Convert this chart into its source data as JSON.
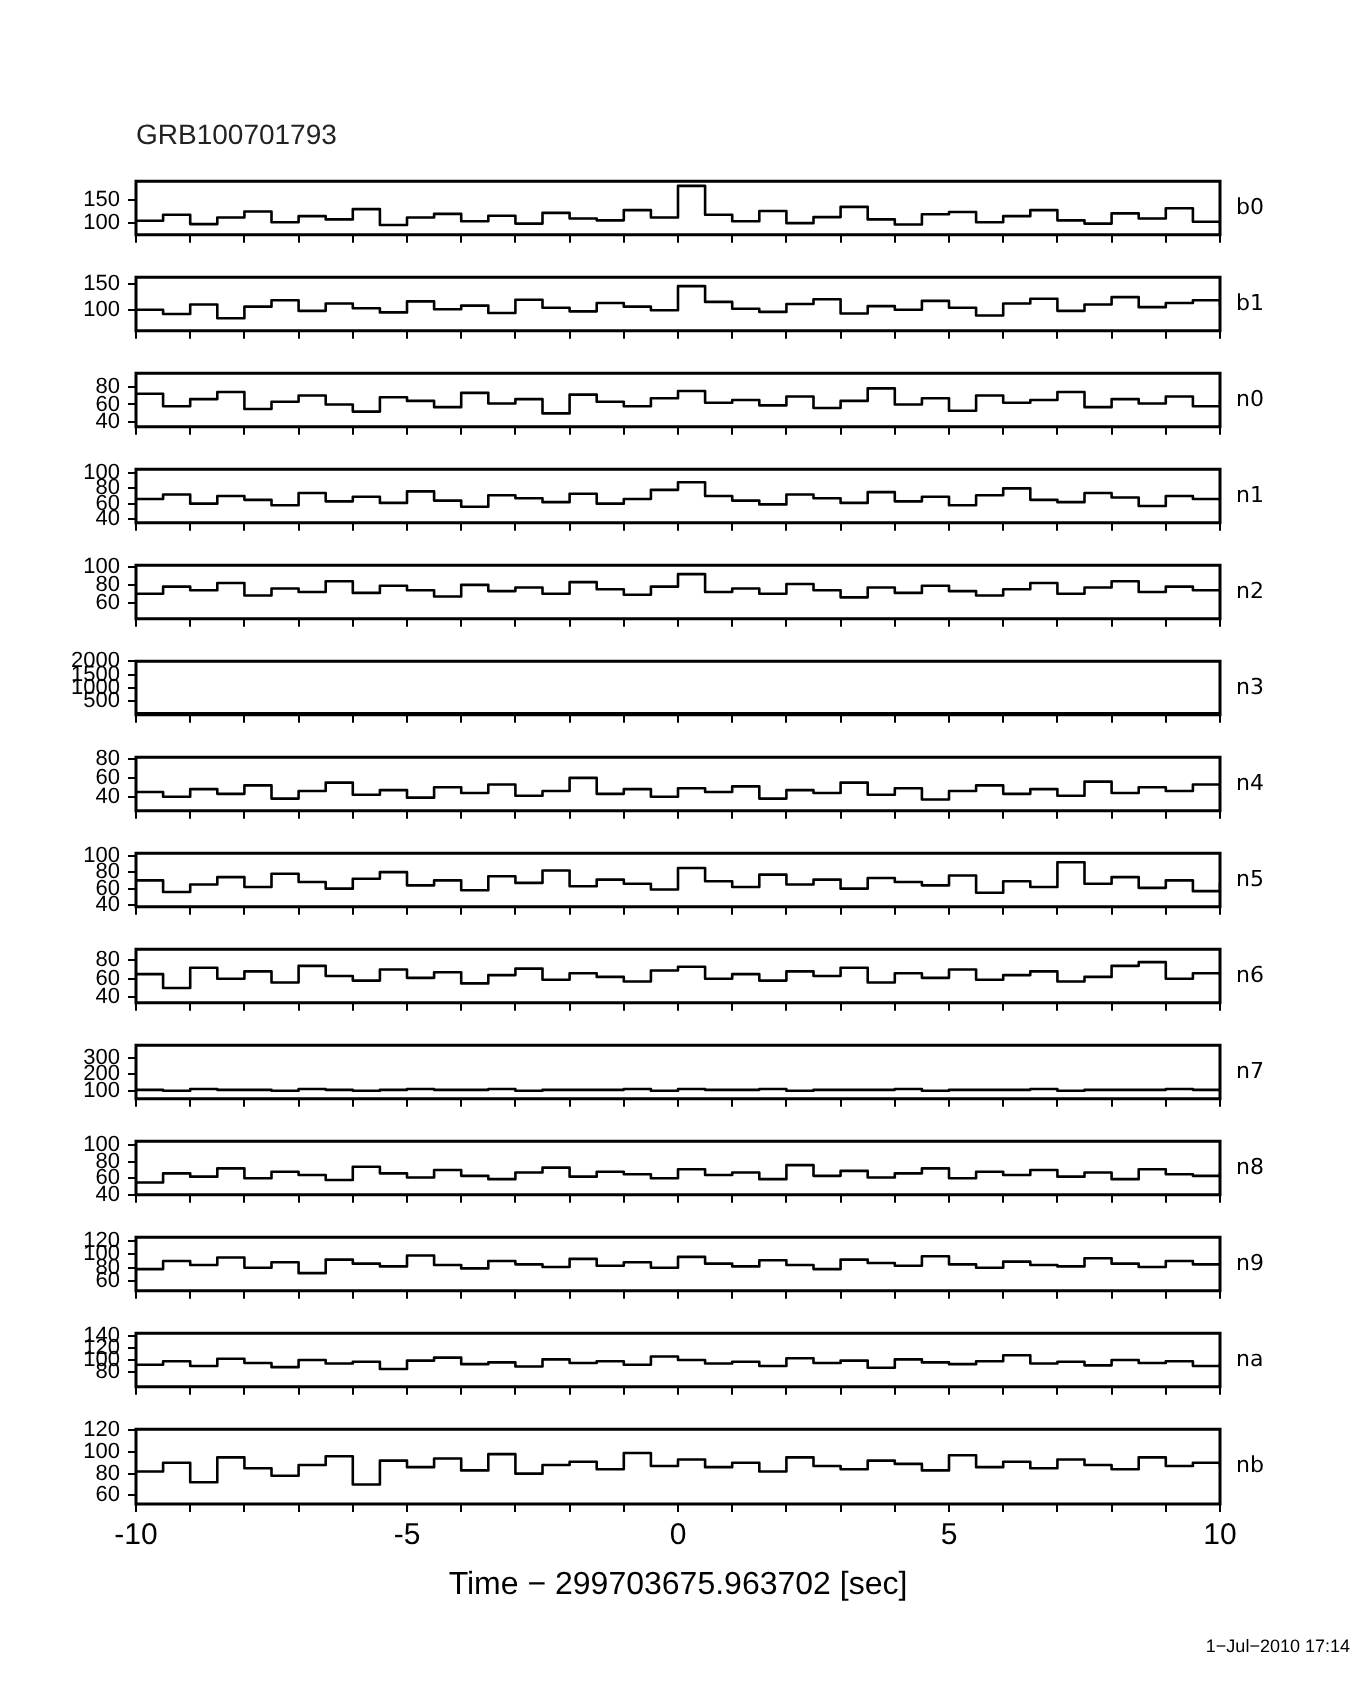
{
  "chart_data": [
    {
      "type": "step",
      "title": "GRB100701793",
      "x": [
        -10,
        -9.5,
        -9,
        -8.5,
        -8,
        -7.5,
        -7,
        -6.5,
        -6,
        -5.5,
        -5,
        -4.5,
        -4,
        -3.5,
        -3,
        -2.5,
        -2,
        -1.5,
        -1,
        -0.5,
        0,
        0.5,
        1,
        1.5,
        2,
        2.5,
        3,
        3.5,
        4,
        4.5,
        5,
        5.5,
        6,
        6.5,
        7,
        7.5,
        8,
        8.5,
        9,
        9.5,
        10
      ],
      "xlim": [
        -10,
        10
      ],
      "xticks": [
        -10,
        {
          "value": -9,
          "label": null
        },
        {
          "value": -8,
          "label": null
        },
        {
          "value": -7,
          "label": null
        },
        {
          "value": -6,
          "label": null
        },
        -5,
        {
          "value": -4,
          "label": null
        },
        {
          "value": -3,
          "label": null
        },
        {
          "value": -2,
          "label": null
        },
        {
          "value": -1,
          "label": null
        },
        0,
        {
          "value": 1,
          "label": null
        },
        {
          "value": 2,
          "label": null
        },
        {
          "value": 3,
          "label": null
        },
        {
          "value": 4,
          "label": null
        },
        5,
        {
          "value": 6,
          "label": null
        },
        {
          "value": 7,
          "label": null
        },
        {
          "value": 8,
          "label": null
        },
        {
          "value": 9,
          "label": null
        },
        10
      ],
      "ylim": [
        75,
        190
      ],
      "yticks": [
        100,
        150
      ],
      "tick_labels": "y",
      "series": [
        {
          "name": "b0",
          "color": "#000000",
          "values": [
            105,
            118,
            98,
            112,
            125,
            102,
            115,
            108,
            130,
            96,
            112,
            120,
            104,
            116,
            99,
            122,
            110,
            106,
            128,
            112,
            180,
            118,
            104,
            126,
            100,
            113,
            135,
            108,
            97,
            119,
            124,
            102,
            115,
            128,
            106,
            99,
            121,
            110,
            132,
            103,
            96
          ]
        }
      ]
    },
    {
      "type": "step",
      "x": [
        -10,
        -9.5,
        -9,
        -8.5,
        -8,
        -7.5,
        -7,
        -6.5,
        -6,
        -5.5,
        -5,
        -4.5,
        -4,
        -3.5,
        -3,
        -2.5,
        -2,
        -1.5,
        -1,
        -0.5,
        0,
        0.5,
        1,
        1.5,
        2,
        2.5,
        3,
        3.5,
        4,
        4.5,
        5,
        5.5,
        6,
        6.5,
        7,
        7.5,
        8,
        8.5,
        9,
        9.5,
        10
      ],
      "xlim": [
        -10,
        10
      ],
      "xticks": [
        -10,
        {
          "value": -9,
          "label": null
        },
        {
          "value": -8,
          "label": null
        },
        {
          "value": -7,
          "label": null
        },
        {
          "value": -6,
          "label": null
        },
        -5,
        {
          "value": -4,
          "label": null
        },
        {
          "value": -3,
          "label": null
        },
        {
          "value": -2,
          "label": null
        },
        {
          "value": -1,
          "label": null
        },
        0,
        {
          "value": 1,
          "label": null
        },
        {
          "value": 2,
          "label": null
        },
        {
          "value": 3,
          "label": null
        },
        {
          "value": 4,
          "label": null
        },
        5,
        {
          "value": 6,
          "label": null
        },
        {
          "value": 7,
          "label": null
        },
        {
          "value": 8,
          "label": null
        },
        {
          "value": 9,
          "label": null
        },
        10
      ],
      "ylim": [
        60,
        162
      ],
      "yticks": [
        100,
        150
      ],
      "tick_labels": "y",
      "series": [
        {
          "name": "b1",
          "color": "#000000",
          "values": [
            100,
            92,
            110,
            84,
            106,
            118,
            98,
            112,
            103,
            95,
            116,
            101,
            108,
            94,
            119,
            104,
            97,
            113,
            106,
            99,
            145,
            115,
            102,
            96,
            111,
            120,
            93,
            107,
            100,
            117,
            104,
            89,
            112,
            121,
            98,
            110,
            124,
            105,
            113,
            118,
            108
          ]
        }
      ]
    },
    {
      "type": "step",
      "x": [
        -10,
        -9.5,
        -9,
        -8.5,
        -8,
        -7.5,
        -7,
        -6.5,
        -6,
        -5.5,
        -5,
        -4.5,
        -4,
        -3.5,
        -3,
        -2.5,
        -2,
        -1.5,
        -1,
        -0.5,
        0,
        0.5,
        1,
        1.5,
        2,
        2.5,
        3,
        3.5,
        4,
        4.5,
        5,
        5.5,
        6,
        6.5,
        7,
        7.5,
        8,
        8.5,
        9,
        9.5,
        10
      ],
      "xlim": [
        -10,
        10
      ],
      "xticks": [
        -10,
        {
          "value": -9,
          "label": null
        },
        {
          "value": -8,
          "label": null
        },
        {
          "value": -7,
          "label": null
        },
        {
          "value": -6,
          "label": null
        },
        -5,
        {
          "value": -4,
          "label": null
        },
        {
          "value": -3,
          "label": null
        },
        {
          "value": -2,
          "label": null
        },
        {
          "value": -1,
          "label": null
        },
        0,
        {
          "value": 1,
          "label": null
        },
        {
          "value": 2,
          "label": null
        },
        {
          "value": 3,
          "label": null
        },
        {
          "value": 4,
          "label": null
        },
        5,
        {
          "value": 6,
          "label": null
        },
        {
          "value": 7,
          "label": null
        },
        {
          "value": 8,
          "label": null
        },
        {
          "value": 9,
          "label": null
        },
        10
      ],
      "ylim": [
        35,
        95
      ],
      "yticks": [
        40,
        60,
        80
      ],
      "tick_labels": "y",
      "series": [
        {
          "name": "n0",
          "color": "#000000",
          "values": [
            72,
            58,
            66,
            74,
            55,
            63,
            70,
            60,
            52,
            68,
            64,
            57,
            73,
            61,
            66,
            50,
            71,
            63,
            58,
            67,
            75,
            62,
            65,
            59,
            69,
            56,
            64,
            78,
            60,
            67,
            53,
            70,
            62,
            65,
            74,
            57,
            66,
            61,
            69,
            58,
            65
          ]
        }
      ]
    },
    {
      "type": "step",
      "x": [
        -10,
        -9.5,
        -9,
        -8.5,
        -8,
        -7.5,
        -7,
        -6.5,
        -6,
        -5.5,
        -5,
        -4.5,
        -4,
        -3.5,
        -3,
        -2.5,
        -2,
        -1.5,
        -1,
        -0.5,
        0,
        0.5,
        1,
        1.5,
        2,
        2.5,
        3,
        3.5,
        4,
        4.5,
        5,
        5.5,
        6,
        6.5,
        7,
        7.5,
        8,
        8.5,
        9,
        9.5,
        10
      ],
      "xlim": [
        -10,
        10
      ],
      "xticks": [
        -10,
        {
          "value": -9,
          "label": null
        },
        {
          "value": -8,
          "label": null
        },
        {
          "value": -7,
          "label": null
        },
        {
          "value": -6,
          "label": null
        },
        -5,
        {
          "value": -4,
          "label": null
        },
        {
          "value": -3,
          "label": null
        },
        {
          "value": -2,
          "label": null
        },
        {
          "value": -1,
          "label": null
        },
        0,
        {
          "value": 1,
          "label": null
        },
        {
          "value": 2,
          "label": null
        },
        {
          "value": 3,
          "label": null
        },
        {
          "value": 4,
          "label": null
        },
        5,
        {
          "value": 6,
          "label": null
        },
        {
          "value": 7,
          "label": null
        },
        {
          "value": 8,
          "label": null
        },
        {
          "value": 9,
          "label": null
        },
        10
      ],
      "ylim": [
        35,
        105
      ],
      "yticks": [
        40,
        60,
        80,
        100
      ],
      "tick_labels": "y",
      "series": [
        {
          "name": "n1",
          "color": "#000000",
          "values": [
            66,
            72,
            60,
            70,
            65,
            58,
            74,
            63,
            69,
            61,
            76,
            64,
            56,
            71,
            67,
            62,
            73,
            60,
            66,
            78,
            88,
            70,
            64,
            59,
            72,
            67,
            61,
            75,
            63,
            69,
            58,
            71,
            80,
            65,
            62,
            74,
            68,
            57,
            70,
            66,
            63
          ]
        }
      ]
    },
    {
      "type": "step",
      "x": [
        -10,
        -9.5,
        -9,
        -8.5,
        -8,
        -7.5,
        -7,
        -6.5,
        -6,
        -5.5,
        -5,
        -4.5,
        -4,
        -3.5,
        -3,
        -2.5,
        -2,
        -1.5,
        -1,
        -0.5,
        0,
        0.5,
        1,
        1.5,
        2,
        2.5,
        3,
        3.5,
        4,
        4.5,
        5,
        5.5,
        6,
        6.5,
        7,
        7.5,
        8,
        8.5,
        9,
        9.5,
        10
      ],
      "xlim": [
        -10,
        10
      ],
      "xticks": [
        -10,
        {
          "value": -9,
          "label": null
        },
        {
          "value": -8,
          "label": null
        },
        {
          "value": -7,
          "label": null
        },
        {
          "value": -6,
          "label": null
        },
        -5,
        {
          "value": -4,
          "label": null
        },
        {
          "value": -3,
          "label": null
        },
        {
          "value": -2,
          "label": null
        },
        {
          "value": -1,
          "label": null
        },
        0,
        {
          "value": 1,
          "label": null
        },
        {
          "value": 2,
          "label": null
        },
        {
          "value": 3,
          "label": null
        },
        {
          "value": 4,
          "label": null
        },
        5,
        {
          "value": 6,
          "label": null
        },
        {
          "value": 7,
          "label": null
        },
        {
          "value": 8,
          "label": null
        },
        {
          "value": 9,
          "label": null
        },
        10
      ],
      "ylim": [
        42,
        102
      ],
      "yticks": [
        60,
        80,
        100
      ],
      "tick_labels": "y",
      "series": [
        {
          "name": "n2",
          "color": "#000000",
          "values": [
            70,
            78,
            74,
            82,
            68,
            76,
            72,
            84,
            71,
            79,
            74,
            67,
            80,
            73,
            77,
            70,
            83,
            75,
            69,
            78,
            92,
            72,
            76,
            70,
            81,
            74,
            66,
            77,
            71,
            79,
            73,
            68,
            75,
            82,
            70,
            77,
            84,
            72,
            78,
            74,
            76
          ]
        }
      ]
    },
    {
      "type": "step",
      "x": [
        -10,
        -9.5,
        -9,
        -8.5,
        -8,
        -7.5,
        -7,
        -6.5,
        -6,
        -5.5,
        -5,
        -4.5,
        -4,
        -3.5,
        -3,
        -2.5,
        -2,
        -1.5,
        -1,
        -0.5,
        0,
        0.5,
        1,
        1.5,
        2,
        2.5,
        3,
        3.5,
        4,
        4.5,
        5,
        5.5,
        6,
        6.5,
        7,
        7.5,
        8,
        8.5,
        9,
        9.5,
        10
      ],
      "xlim": [
        -10,
        10
      ],
      "xticks": [
        -10,
        {
          "value": -9,
          "label": null
        },
        {
          "value": -8,
          "label": null
        },
        {
          "value": -7,
          "label": null
        },
        {
          "value": -6,
          "label": null
        },
        -5,
        {
          "value": -4,
          "label": null
        },
        {
          "value": -3,
          "label": null
        },
        {
          "value": -2,
          "label": null
        },
        {
          "value": -1,
          "label": null
        },
        0,
        {
          "value": 1,
          "label": null
        },
        {
          "value": 2,
          "label": null
        },
        {
          "value": 3,
          "label": null
        },
        {
          "value": 4,
          "label": null
        },
        5,
        {
          "value": 6,
          "label": null
        },
        {
          "value": 7,
          "label": null
        },
        {
          "value": 8,
          "label": null
        },
        {
          "value": 9,
          "label": null
        },
        10
      ],
      "ylim": [
        0,
        2000
      ],
      "yticks": [
        500,
        1000,
        1500,
        2000
      ],
      "tick_labels": "y",
      "series": [
        {
          "name": "n3",
          "color": "#000000",
          "values": [
            60,
            60,
            60,
            60,
            60,
            60,
            60,
            60,
            60,
            60,
            60,
            60,
            60,
            60,
            60,
            60,
            60,
            60,
            60,
            60,
            60,
            60,
            60,
            60,
            60,
            60,
            60,
            60,
            60,
            60,
            60,
            60,
            60,
            60,
            60,
            60,
            60,
            60,
            60,
            60,
            60
          ]
        }
      ]
    },
    {
      "type": "step",
      "x": [
        -10,
        -9.5,
        -9,
        -8.5,
        -8,
        -7.5,
        -7,
        -6.5,
        -6,
        -5.5,
        -5,
        -4.5,
        -4,
        -3.5,
        -3,
        -2.5,
        -2,
        -1.5,
        -1,
        -0.5,
        0,
        0.5,
        1,
        1.5,
        2,
        2.5,
        3,
        3.5,
        4,
        4.5,
        5,
        5.5,
        6,
        6.5,
        7,
        7.5,
        8,
        8.5,
        9,
        9.5,
        10
      ],
      "xlim": [
        -10,
        10
      ],
      "xticks": [
        -10,
        {
          "value": -9,
          "label": null
        },
        {
          "value": -8,
          "label": null
        },
        {
          "value": -7,
          "label": null
        },
        {
          "value": -6,
          "label": null
        },
        -5,
        {
          "value": -4,
          "label": null
        },
        {
          "value": -3,
          "label": null
        },
        {
          "value": -2,
          "label": null
        },
        {
          "value": -1,
          "label": null
        },
        0,
        {
          "value": 1,
          "label": null
        },
        {
          "value": 2,
          "label": null
        },
        {
          "value": 3,
          "label": null
        },
        {
          "value": 4,
          "label": null
        },
        5,
        {
          "value": 6,
          "label": null
        },
        {
          "value": 7,
          "label": null
        },
        {
          "value": 8,
          "label": null
        },
        {
          "value": 9,
          "label": null
        },
        10
      ],
      "ylim": [
        25,
        82
      ],
      "yticks": [
        40,
        60,
        80
      ],
      "tick_labels": "y",
      "series": [
        {
          "name": "n4",
          "color": "#000000",
          "values": [
            45,
            40,
            48,
            43,
            52,
            38,
            46,
            55,
            42,
            47,
            39,
            50,
            44,
            53,
            41,
            46,
            60,
            43,
            48,
            40,
            49,
            45,
            51,
            38,
            47,
            44,
            55,
            42,
            49,
            37,
            46,
            52,
            43,
            48,
            41,
            56,
            44,
            50,
            46,
            53,
            47
          ]
        }
      ]
    },
    {
      "type": "step",
      "x": [
        -10,
        -9.5,
        -9,
        -8.5,
        -8,
        -7.5,
        -7,
        -6.5,
        -6,
        -5.5,
        -5,
        -4.5,
        -4,
        -3.5,
        -3,
        -2.5,
        -2,
        -1.5,
        -1,
        -0.5,
        0,
        0.5,
        1,
        1.5,
        2,
        2.5,
        3,
        3.5,
        4,
        4.5,
        5,
        5.5,
        6,
        6.5,
        7,
        7.5,
        8,
        8.5,
        9,
        9.5,
        10
      ],
      "xlim": [
        -10,
        10
      ],
      "xticks": [
        -10,
        {
          "value": -9,
          "label": null
        },
        {
          "value": -8,
          "label": null
        },
        {
          "value": -7,
          "label": null
        },
        {
          "value": -6,
          "label": null
        },
        -5,
        {
          "value": -4,
          "label": null
        },
        {
          "value": -3,
          "label": null
        },
        {
          "value": -2,
          "label": null
        },
        {
          "value": -1,
          "label": null
        },
        0,
        {
          "value": 1,
          "label": null
        },
        {
          "value": 2,
          "label": null
        },
        {
          "value": 3,
          "label": null
        },
        {
          "value": 4,
          "label": null
        },
        5,
        {
          "value": 6,
          "label": null
        },
        {
          "value": 7,
          "label": null
        },
        {
          "value": 8,
          "label": null
        },
        {
          "value": 9,
          "label": null
        },
        10
      ],
      "ylim": [
        38,
        103
      ],
      "yticks": [
        40,
        60,
        80,
        100
      ],
      "tick_labels": "y",
      "series": [
        {
          "name": "n5",
          "color": "#000000",
          "values": [
            70,
            56,
            65,
            74,
            62,
            78,
            68,
            60,
            72,
            80,
            64,
            70,
            58,
            75,
            67,
            82,
            63,
            71,
            66,
            59,
            85,
            69,
            62,
            77,
            65,
            71,
            60,
            73,
            68,
            64,
            76,
            55,
            69,
            62,
            92,
            66,
            74,
            61,
            70,
            57,
            67
          ]
        }
      ]
    },
    {
      "type": "step",
      "x": [
        -10,
        -9.5,
        -9,
        -8.5,
        -8,
        -7.5,
        -7,
        -6.5,
        -6,
        -5.5,
        -5,
        -4.5,
        -4,
        -3.5,
        -3,
        -2.5,
        -2,
        -1.5,
        -1,
        -0.5,
        0,
        0.5,
        1,
        1.5,
        2,
        2.5,
        3,
        3.5,
        4,
        4.5,
        5,
        5.5,
        6,
        6.5,
        7,
        7.5,
        8,
        8.5,
        9,
        9.5,
        10
      ],
      "xlim": [
        -10,
        10
      ],
      "xticks": [
        -10,
        {
          "value": -9,
          "label": null
        },
        {
          "value": -8,
          "label": null
        },
        {
          "value": -7,
          "label": null
        },
        {
          "value": -6,
          "label": null
        },
        -5,
        {
          "value": -4,
          "label": null
        },
        {
          "value": -3,
          "label": null
        },
        {
          "value": -2,
          "label": null
        },
        {
          "value": -1,
          "label": null
        },
        0,
        {
          "value": 1,
          "label": null
        },
        {
          "value": 2,
          "label": null
        },
        {
          "value": 3,
          "label": null
        },
        {
          "value": 4,
          "label": null
        },
        5,
        {
          "value": 6,
          "label": null
        },
        {
          "value": 7,
          "label": null
        },
        {
          "value": 8,
          "label": null
        },
        {
          "value": 9,
          "label": null
        },
        10
      ],
      "ylim": [
        34,
        92
      ],
      "yticks": [
        40,
        60,
        80
      ],
      "tick_labels": "y",
      "series": [
        {
          "name": "n6",
          "color": "#000000",
          "values": [
            65,
            50,
            72,
            60,
            68,
            56,
            74,
            63,
            58,
            70,
            61,
            67,
            55,
            64,
            71,
            59,
            66,
            62,
            57,
            69,
            73,
            60,
            65,
            58,
            68,
            63,
            72,
            56,
            66,
            61,
            70,
            59,
            64,
            68,
            57,
            62,
            74,
            78,
            60,
            66,
            63
          ]
        }
      ]
    },
    {
      "type": "step",
      "x": [
        -10,
        -9.5,
        -9,
        -8.5,
        -8,
        -7.5,
        -7,
        -6.5,
        -6,
        -5.5,
        -5,
        -4.5,
        -4,
        -3.5,
        -3,
        -2.5,
        -2,
        -1.5,
        -1,
        -0.5,
        0,
        0.5,
        1,
        1.5,
        2,
        2.5,
        3,
        3.5,
        4,
        4.5,
        5,
        5.5,
        6,
        6.5,
        7,
        7.5,
        8,
        8.5,
        9,
        9.5,
        10
      ],
      "xlim": [
        -10,
        10
      ],
      "xticks": [
        -10,
        {
          "value": -9,
          "label": null
        },
        {
          "value": -8,
          "label": null
        },
        {
          "value": -7,
          "label": null
        },
        {
          "value": -6,
          "label": null
        },
        -5,
        {
          "value": -4,
          "label": null
        },
        {
          "value": -3,
          "label": null
        },
        {
          "value": -2,
          "label": null
        },
        {
          "value": -1,
          "label": null
        },
        0,
        {
          "value": 1,
          "label": null
        },
        {
          "value": 2,
          "label": null
        },
        {
          "value": 3,
          "label": null
        },
        {
          "value": 4,
          "label": null
        },
        5,
        {
          "value": 6,
          "label": null
        },
        {
          "value": 7,
          "label": null
        },
        {
          "value": 8,
          "label": null
        },
        {
          "value": 9,
          "label": null
        },
        10
      ],
      "ylim": [
        50,
        380
      ],
      "yticks": [
        100,
        200,
        300
      ],
      "tick_labels": "y",
      "series": [
        {
          "name": "n7",
          "color": "#000000",
          "values": [
            105,
            100,
            110,
            105,
            105,
            100,
            110,
            105,
            100,
            105,
            110,
            105,
            105,
            110,
            100,
            105,
            105,
            105,
            110,
            100,
            110,
            105,
            105,
            110,
            100,
            105,
            105,
            105,
            110,
            100,
            105,
            105,
            105,
            110,
            100,
            105,
            105,
            105,
            110,
            105,
            105
          ]
        }
      ]
    },
    {
      "type": "step",
      "x": [
        -10,
        -9.5,
        -9,
        -8.5,
        -8,
        -7.5,
        -7,
        -6.5,
        -6,
        -5.5,
        -5,
        -4.5,
        -4,
        -3.5,
        -3,
        -2.5,
        -2,
        -1.5,
        -1,
        -0.5,
        0,
        0.5,
        1,
        1.5,
        2,
        2.5,
        3,
        3.5,
        4,
        4.5,
        5,
        5.5,
        6,
        6.5,
        7,
        7.5,
        8,
        8.5,
        9,
        9.5,
        10
      ],
      "xlim": [
        -10,
        10
      ],
      "xticks": [
        -10,
        {
          "value": -9,
          "label": null
        },
        {
          "value": -8,
          "label": null
        },
        {
          "value": -7,
          "label": null
        },
        {
          "value": -6,
          "label": null
        },
        -5,
        {
          "value": -4,
          "label": null
        },
        {
          "value": -3,
          "label": null
        },
        {
          "value": -2,
          "label": null
        },
        {
          "value": -1,
          "label": null
        },
        0,
        {
          "value": 1,
          "label": null
        },
        {
          "value": 2,
          "label": null
        },
        {
          "value": 3,
          "label": null
        },
        {
          "value": 4,
          "label": null
        },
        5,
        {
          "value": 6,
          "label": null
        },
        {
          "value": 7,
          "label": null
        },
        {
          "value": 8,
          "label": null
        },
        {
          "value": 9,
          "label": null
        },
        10
      ],
      "ylim": [
        40,
        105
      ],
      "yticks": [
        40,
        60,
        80,
        100
      ],
      "tick_labels": "y",
      "series": [
        {
          "name": "n8",
          "color": "#000000",
          "values": [
            55,
            66,
            62,
            72,
            60,
            68,
            64,
            58,
            74,
            66,
            61,
            70,
            63,
            59,
            67,
            73,
            62,
            68,
            65,
            60,
            71,
            64,
            67,
            59,
            76,
            63,
            69,
            61,
            66,
            72,
            60,
            68,
            64,
            70,
            62,
            67,
            59,
            71,
            65,
            63,
            68
          ]
        }
      ]
    },
    {
      "type": "step",
      "x": [
        -10,
        -9.5,
        -9,
        -8.5,
        -8,
        -7.5,
        -7,
        -6.5,
        -6,
        -5.5,
        -5,
        -4.5,
        -4,
        -3.5,
        -3,
        -2.5,
        -2,
        -1.5,
        -1,
        -0.5,
        0,
        0.5,
        1,
        1.5,
        2,
        2.5,
        3,
        3.5,
        4,
        4.5,
        5,
        5.5,
        6,
        6.5,
        7,
        7.5,
        8,
        8.5,
        9,
        9.5,
        10
      ],
      "xlim": [
        -10,
        10
      ],
      "xticks": [
        -10,
        {
          "value": -9,
          "label": null
        },
        {
          "value": -8,
          "label": null
        },
        {
          "value": -7,
          "label": null
        },
        {
          "value": -6,
          "label": null
        },
        -5,
        {
          "value": -4,
          "label": null
        },
        {
          "value": -3,
          "label": null
        },
        {
          "value": -2,
          "label": null
        },
        {
          "value": -1,
          "label": null
        },
        0,
        {
          "value": 1,
          "label": null
        },
        {
          "value": 2,
          "label": null
        },
        {
          "value": 3,
          "label": null
        },
        {
          "value": 4,
          "label": null
        },
        5,
        {
          "value": 6,
          "label": null
        },
        {
          "value": 7,
          "label": null
        },
        {
          "value": 8,
          "label": null
        },
        {
          "value": 9,
          "label": null
        },
        10
      ],
      "ylim": [
        46,
        125
      ],
      "yticks": [
        60,
        80,
        100,
        120
      ],
      "tick_labels": "y",
      "series": [
        {
          "name": "n9",
          "color": "#000000",
          "values": [
            78,
            90,
            84,
            95,
            80,
            88,
            72,
            92,
            86,
            82,
            98,
            84,
            79,
            90,
            85,
            81,
            93,
            83,
            88,
            80,
            96,
            86,
            82,
            91,
            84,
            78,
            92,
            87,
            83,
            97,
            85,
            80,
            89,
            84,
            82,
            94,
            86,
            81,
            90,
            85,
            83
          ]
        }
      ]
    },
    {
      "type": "step",
      "x": [
        -10,
        -9.5,
        -9,
        -8.5,
        -8,
        -7.5,
        -7,
        -6.5,
        -6,
        -5.5,
        -5,
        -4.5,
        -4,
        -3.5,
        -3,
        -2.5,
        -2,
        -1.5,
        -1,
        -0.5,
        0,
        0.5,
        1,
        1.5,
        2,
        2.5,
        3,
        3.5,
        4,
        4.5,
        5,
        5.5,
        6,
        6.5,
        7,
        7.5,
        8,
        8.5,
        9,
        9.5,
        10
      ],
      "xlim": [
        -10,
        10
      ],
      "xticks": [
        -10,
        {
          "value": -9,
          "label": null
        },
        {
          "value": -8,
          "label": null
        },
        {
          "value": -7,
          "label": null
        },
        {
          "value": -6,
          "label": null
        },
        -5,
        {
          "value": -4,
          "label": null
        },
        {
          "value": -3,
          "label": null
        },
        {
          "value": -2,
          "label": null
        },
        {
          "value": -1,
          "label": null
        },
        0,
        {
          "value": 1,
          "label": null
        },
        {
          "value": 2,
          "label": null
        },
        {
          "value": 3,
          "label": null
        },
        {
          "value": 4,
          "label": null
        },
        5,
        {
          "value": 6,
          "label": null
        },
        {
          "value": 7,
          "label": null
        },
        {
          "value": 8,
          "label": null
        },
        {
          "value": 9,
          "label": null
        },
        10
      ],
      "ylim": [
        55,
        145
      ],
      "yticks": [
        80,
        100,
        120,
        140
      ],
      "tick_labels": "y",
      "series": [
        {
          "name": "na",
          "color": "#000000",
          "values": [
            92,
            98,
            90,
            102,
            95,
            88,
            100,
            94,
            97,
            85,
            99,
            104,
            93,
            96,
            89,
            101,
            95,
            98,
            92,
            106,
            100,
            94,
            97,
            90,
            103,
            95,
            99,
            87,
            101,
            96,
            93,
            98,
            108,
            94,
            97,
            91,
            100,
            95,
            98,
            90,
            96
          ]
        }
      ]
    },
    {
      "type": "step",
      "xlabel": "Time − 299703675.963702 [sec]",
      "annotations": [
        "1−Jul−2010 17:14"
      ],
      "x": [
        -10,
        -9.5,
        -9,
        -8.5,
        -8,
        -7.5,
        -7,
        -6.5,
        -6,
        -5.5,
        -5,
        -4.5,
        -4,
        -3.5,
        -3,
        -2.5,
        -2,
        -1.5,
        -1,
        -0.5,
        0,
        0.5,
        1,
        1.5,
        2,
        2.5,
        3,
        3.5,
        4,
        4.5,
        5,
        5.5,
        6,
        6.5,
        7,
        7.5,
        8,
        8.5,
        9,
        9.5,
        10
      ],
      "xlim": [
        -10,
        10
      ],
      "xticks": [
        -10,
        {
          "value": -9,
          "label": null
        },
        {
          "value": -8,
          "label": null
        },
        {
          "value": -7,
          "label": null
        },
        {
          "value": -6,
          "label": null
        },
        -5,
        {
          "value": -4,
          "label": null
        },
        {
          "value": -3,
          "label": null
        },
        {
          "value": -2,
          "label": null
        },
        {
          "value": -1,
          "label": null
        },
        0,
        {
          "value": 1,
          "label": null
        },
        {
          "value": 2,
          "label": null
        },
        {
          "value": 3,
          "label": null
        },
        {
          "value": 4,
          "label": null
        },
        5,
        {
          "value": 6,
          "label": null
        },
        {
          "value": 7,
          "label": null
        },
        {
          "value": 8,
          "label": null
        },
        {
          "value": 9,
          "label": null
        },
        10
      ],
      "ylim": [
        52,
        121
      ],
      "yticks": [
        60,
        80,
        100,
        120
      ],
      "series": [
        {
          "name": "nb",
          "color": "#000000",
          "values": [
            82,
            90,
            72,
            95,
            85,
            78,
            88,
            96,
            70,
            92,
            86,
            94,
            83,
            98,
            80,
            88,
            91,
            84,
            99,
            87,
            93,
            86,
            90,
            82,
            95,
            87,
            84,
            92,
            89,
            83,
            97,
            86,
            91,
            85,
            93,
            88,
            84,
            95,
            87,
            90,
            86
          ]
        }
      ]
    }
  ]
}
